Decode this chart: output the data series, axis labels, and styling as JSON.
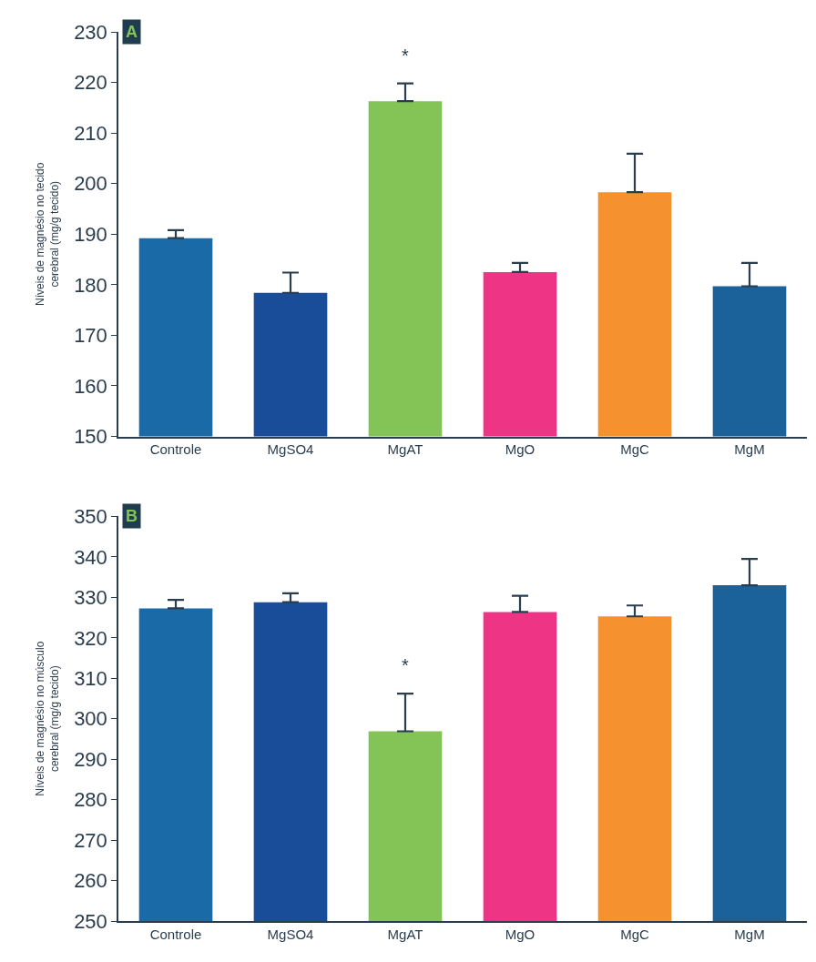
{
  "chart_data": [
    {
      "type": "bar",
      "ylabel": "Níveis de magnésio no tecido cerebral (mg/g tecido)",
      "categories": [
        "Controle",
        "MgSO4",
        "MgAT",
        "MgO",
        "MgC",
        "MgM"
      ],
      "values": [
        189.2,
        178.4,
        216.3,
        182.5,
        198.3,
        179.7
      ],
      "colors": [
        "#1a6aa8",
        "#194d9a",
        "#84c457",
        "#ee3585",
        "#f5922f",
        "#1a6299"
      ],
      "errors": [
        [
          189.2,
          190.8
        ],
        [
          178.4,
          182.4
        ],
        [
          216.3,
          219.8
        ],
        [
          182.5,
          184.3
        ],
        [
          198.3,
          205.9
        ],
        [
          179.7,
          184.3
        ]
      ],
      "ylim": [
        150,
        230
      ],
      "yticks": [
        150,
        160,
        170,
        180,
        190,
        200,
        210,
        220,
        230
      ],
      "annotations": [
        "A",
        "*"
      ]
    },
    {
      "type": "bar",
      "ylabel": "Níveis de magnésio no músculo cerebral (mg/g tecido)",
      "categories": [
        "Controle",
        "MgSO4",
        "MgAT",
        "MgO",
        "MgC",
        "MgM"
      ],
      "values": [
        327.3,
        328.8,
        296.9,
        326.4,
        325.3,
        333.0
      ],
      "colors": [
        "#1a6aa8",
        "#194d9a",
        "#84c457",
        "#ee3585",
        "#f5922f",
        "#1a6299"
      ],
      "errors": [
        [
          327.3,
          329.4
        ],
        [
          328.8,
          331.0
        ],
        [
          296.9,
          306.2
        ],
        [
          326.4,
          330.4
        ],
        [
          325.3,
          328.0
        ],
        [
          333.0,
          339.5
        ]
      ],
      "ylim": [
        250,
        350
      ],
      "yticks": [
        250,
        260,
        270,
        280,
        290,
        300,
        310,
        320,
        330,
        340,
        350
      ],
      "annotations": [
        "B",
        "*"
      ]
    }
  ]
}
